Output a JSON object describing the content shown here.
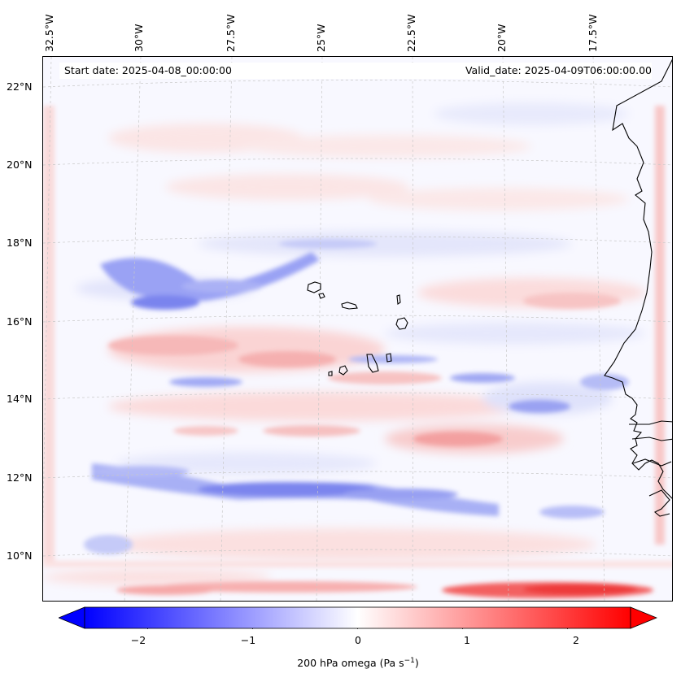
{
  "map": {
    "type": "contour-map",
    "variable": "200 hPa omega",
    "start_date_label": "Start date: 2025-04-08_00:00:00",
    "valid_date_label": "Valid_date: 2025-04-09T06:00:00.00",
    "lon_labels": [
      "32.5°W",
      "30°W",
      "27.5°W",
      "25°W",
      "22.5°W",
      "20°W",
      "17.5°W"
    ],
    "lat_labels": [
      "22°N",
      "20°N",
      "18°N",
      "16°N",
      "14°N",
      "12°N",
      "10°N"
    ],
    "islands": [
      "Santo Antão",
      "São Vicente",
      "São Nicolau",
      "Sal",
      "Boa Vista",
      "Maio",
      "Santiago",
      "Fogo",
      "Brava"
    ],
    "coastline": "West Africa (Mauritania, Senegal, Gambia, Guinea-Bissau)"
  },
  "colorbar": {
    "label_prefix": "200 hPa omega (Pa s",
    "label_exp": "−1",
    "label_suffix": ")",
    "ticks": [
      "−2",
      "−1",
      "0",
      "1",
      "2"
    ],
    "tick_values": [
      -2,
      -1,
      0,
      1,
      2
    ],
    "range": [
      -2.6,
      2.6
    ],
    "colors": {
      "negative": "#0000ff",
      "zero": "#ffffff",
      "positive": "#ff0000"
    },
    "extend": "both"
  }
}
